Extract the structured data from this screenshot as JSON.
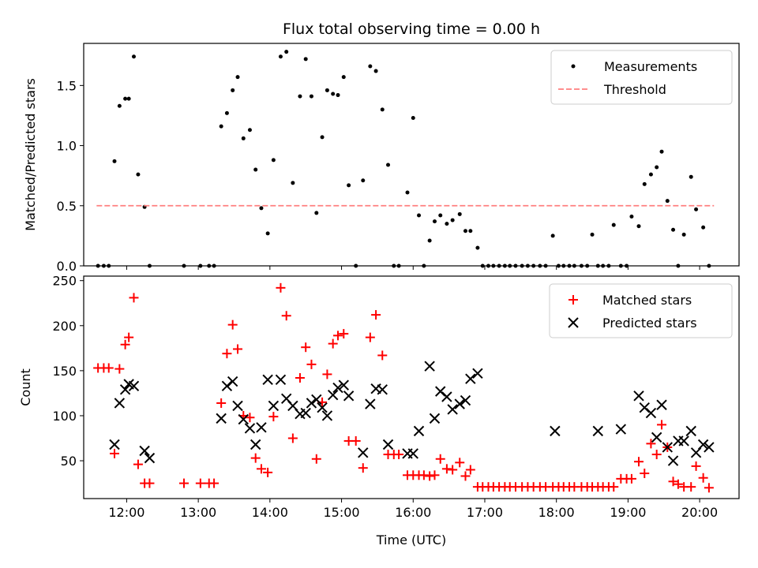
{
  "colors": {
    "matched": "#ff0000",
    "predicted": "#000000",
    "measurements": "#000000",
    "threshold": "#ff7f7f"
  },
  "chart_data": [
    {
      "type": "scatter",
      "title": "Flux total observing time = 0.00 h",
      "xlabel": "",
      "ylabel": "Matched/Predicted stars",
      "xlim": [
        11.4,
        20.55
      ],
      "ylim": [
        0.0,
        1.85
      ],
      "x_ticks": [
        12,
        13,
        14,
        15,
        16,
        17,
        18,
        19,
        20
      ],
      "y_ticks": [
        0.0,
        0.5,
        1.0,
        1.5
      ],
      "y_tick_labels": [
        "0.0",
        "0.5",
        "1.0",
        "1.5"
      ],
      "legend_position": "top-right",
      "legend": [
        "Measurements",
        "Threshold"
      ],
      "series": [
        {
          "name": "Measurements",
          "style": "dots",
          "x": [
            11.6,
            11.68,
            11.75,
            11.83,
            11.9,
            11.98,
            12.03,
            12.1,
            12.16,
            12.25,
            12.32,
            12.8,
            13.03,
            13.15,
            13.22,
            13.32,
            13.4,
            13.48,
            13.55,
            13.63,
            13.72,
            13.8,
            13.88,
            13.97,
            14.05,
            14.15,
            14.23,
            14.32,
            14.42,
            14.5,
            14.58,
            14.65,
            14.73,
            14.8,
            14.88,
            14.95,
            15.03,
            15.1,
            15.2,
            15.3,
            15.4,
            15.48,
            15.57,
            15.65,
            15.73,
            15.8,
            15.92,
            16.0,
            16.08,
            16.15,
            16.23,
            16.3,
            16.38,
            16.47,
            16.55,
            16.65,
            16.73,
            16.8,
            16.9,
            16.97,
            17.05,
            17.12,
            17.2,
            17.28,
            17.35,
            17.43,
            17.52,
            17.6,
            17.68,
            17.77,
            17.85,
            17.95,
            18.03,
            18.1,
            18.18,
            18.25,
            18.35,
            18.43,
            18.5,
            18.58,
            18.65,
            18.73,
            18.8,
            18.9,
            18.98,
            19.05,
            19.15,
            19.23,
            19.32,
            19.4,
            19.47,
            19.55,
            19.63,
            19.7,
            19.78,
            19.88,
            19.95,
            20.05,
            20.13
          ],
          "y": [
            0.0,
            0.0,
            0.0,
            0.87,
            1.33,
            1.39,
            1.39,
            1.74,
            0.76,
            0.49,
            0.0,
            0.0,
            0.0,
            0.0,
            0.0,
            1.16,
            1.27,
            1.46,
            1.57,
            1.06,
            1.13,
            0.8,
            0.48,
            0.27,
            0.88,
            1.74,
            1.78,
            0.69,
            1.41,
            1.72,
            1.41,
            0.44,
            1.07,
            1.46,
            1.43,
            1.42,
            1.57,
            0.67,
            0.0,
            0.71,
            1.66,
            1.62,
            1.3,
            0.84,
            0.0,
            0.0,
            0.61,
            1.23,
            0.42,
            0.0,
            0.21,
            0.37,
            0.42,
            0.35,
            0.38,
            0.43,
            0.29,
            0.29,
            0.15,
            0.0,
            0.0,
            0.0,
            0.0,
            0.0,
            0.0,
            0.0,
            0.0,
            0.0,
            0.0,
            0.0,
            0.0,
            0.25,
            0.0,
            0.0,
            0.0,
            0.0,
            0.0,
            0.0,
            0.26,
            0.0,
            0.0,
            0.0,
            0.34,
            0.0,
            0.0,
            0.41,
            0.33,
            0.68,
            0.76,
            0.82,
            0.95,
            0.54,
            0.3,
            0.0,
            0.26,
            0.74,
            0.47,
            0.32,
            0.0
          ]
        },
        {
          "name": "Threshold",
          "style": "dashed-line",
          "x": [
            11.58,
            20.2
          ],
          "y": [
            0.5,
            0.5
          ]
        }
      ]
    },
    {
      "type": "scatter",
      "title": "",
      "xlabel": "Time (UTC)",
      "ylabel": "Count",
      "xlim": [
        11.4,
        20.55
      ],
      "ylim": [
        8,
        255
      ],
      "x_ticks": [
        12,
        13,
        14,
        15,
        16,
        17,
        18,
        19,
        20
      ],
      "x_tick_labels": [
        "12:00",
        "13:00",
        "14:00",
        "15:00",
        "16:00",
        "17:00",
        "18:00",
        "19:00",
        "20:00"
      ],
      "y_ticks": [
        50,
        100,
        150,
        200,
        250
      ],
      "y_tick_labels": [
        "50",
        "100",
        "150",
        "200",
        "250"
      ],
      "legend_position": "top-right",
      "legend": [
        "Matched stars",
        "Predicted stars"
      ],
      "series": [
        {
          "name": "Matched stars",
          "marker": "+",
          "x": [
            11.6,
            11.68,
            11.75,
            11.83,
            11.9,
            11.98,
            12.03,
            12.1,
            12.16,
            12.25,
            12.32,
            12.8,
            13.03,
            13.15,
            13.22,
            13.32,
            13.4,
            13.48,
            13.55,
            13.63,
            13.72,
            13.8,
            13.88,
            13.97,
            14.05,
            14.15,
            14.23,
            14.32,
            14.42,
            14.5,
            14.58,
            14.65,
            14.73,
            14.8,
            14.88,
            14.95,
            15.03,
            15.1,
            15.2,
            15.3,
            15.4,
            15.48,
            15.57,
            15.65,
            15.73,
            15.8,
            15.92,
            16.0,
            16.08,
            16.15,
            16.23,
            16.3,
            16.38,
            16.47,
            16.55,
            16.65,
            16.73,
            16.8,
            16.9,
            16.97,
            17.05,
            17.12,
            17.2,
            17.28,
            17.35,
            17.43,
            17.52,
            17.6,
            17.68,
            17.77,
            17.85,
            17.95,
            18.03,
            18.1,
            18.18,
            18.25,
            18.35,
            18.43,
            18.5,
            18.58,
            18.65,
            18.73,
            18.8,
            18.9,
            18.98,
            19.05,
            19.15,
            19.23,
            19.32,
            19.4,
            19.47,
            19.55,
            19.63,
            19.7,
            19.78,
            19.88,
            19.95,
            20.05,
            20.13
          ],
          "y": [
            153,
            153,
            153,
            58,
            152,
            179,
            187,
            231,
            46,
            25,
            25,
            25,
            25,
            25,
            25,
            114,
            169,
            201,
            174,
            100,
            98,
            53,
            41,
            37,
            99,
            242,
            211,
            75,
            142,
            176,
            157,
            52,
            115,
            146,
            180,
            189,
            191,
            72,
            72,
            42,
            187,
            212,
            167,
            57,
            57,
            57,
            34,
            34,
            34,
            34,
            33,
            34,
            52,
            41,
            40,
            48,
            33,
            40,
            21,
            21,
            21,
            21,
            21,
            21,
            21,
            21,
            21,
            21,
            21,
            21,
            21,
            21,
            21,
            21,
            21,
            21,
            21,
            21,
            21,
            21,
            21,
            21,
            21,
            30,
            30,
            30,
            49,
            36,
            69,
            57,
            90,
            65,
            27,
            24,
            21,
            21,
            44,
            31,
            20
          ]
        },
        {
          "name": "Predicted stars",
          "marker": "x",
          "x": [
            11.83,
            11.9,
            11.98,
            12.03,
            12.1,
            12.25,
            12.32,
            13.32,
            13.4,
            13.48,
            13.55,
            13.63,
            13.72,
            13.8,
            13.88,
            13.97,
            14.05,
            14.15,
            14.23,
            14.32,
            14.42,
            14.5,
            14.58,
            14.65,
            14.73,
            14.8,
            14.88,
            14.95,
            15.03,
            15.1,
            15.3,
            15.4,
            15.48,
            15.57,
            15.65,
            15.92,
            16.0,
            16.08,
            16.23,
            16.3,
            16.38,
            16.47,
            16.55,
            16.65,
            16.73,
            16.8,
            16.9,
            17.98,
            18.58,
            18.9,
            19.15,
            19.23,
            19.32,
            19.4,
            19.47,
            19.55,
            19.63,
            19.7,
            19.78,
            19.88,
            19.95,
            20.05,
            20.13
          ],
          "y": [
            68,
            114,
            129,
            135,
            133,
            61,
            53,
            97,
            133,
            138,
            111,
            96,
            86,
            68,
            87,
            140,
            111,
            140,
            119,
            111,
            102,
            103,
            114,
            118,
            109,
            100,
            123,
            131,
            134,
            122,
            59,
            113,
            130,
            129,
            68,
            58,
            58,
            83,
            155,
            97,
            127,
            121,
            107,
            113,
            117,
            141,
            147,
            83,
            83,
            85,
            122,
            109,
            103,
            76,
            112,
            65,
            50,
            72,
            72,
            83,
            59,
            68,
            65
          ]
        }
      ]
    }
  ]
}
